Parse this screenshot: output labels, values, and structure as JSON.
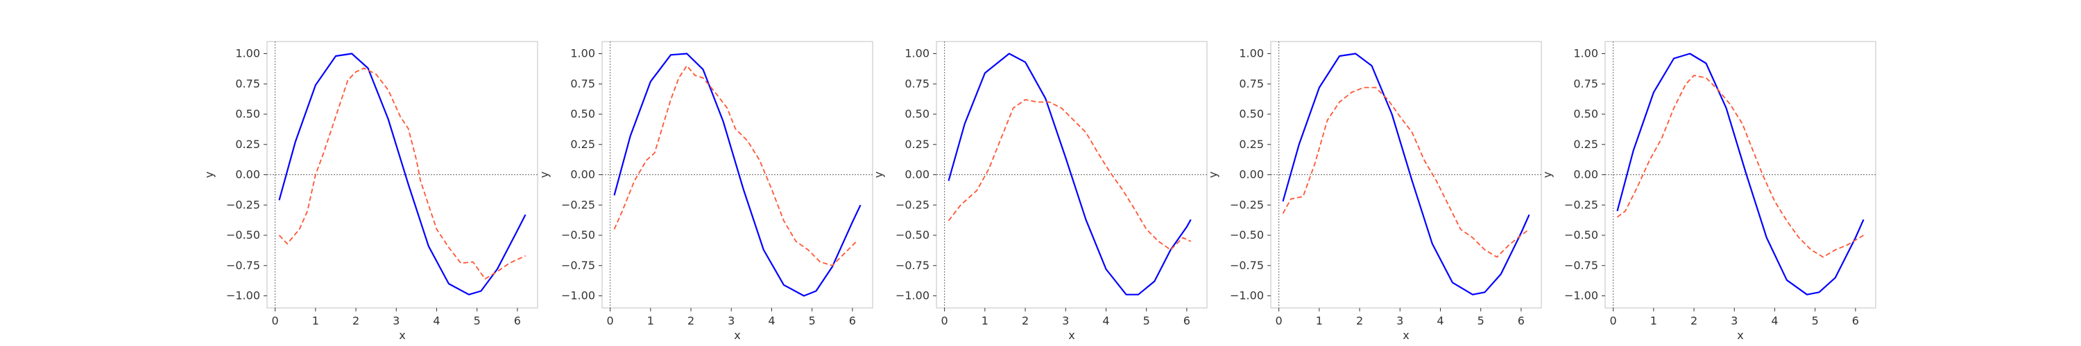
{
  "chart_data": [
    {
      "type": "line",
      "xlabel": "x",
      "ylabel": "y",
      "xlim": [
        -0.2,
        6.5
      ],
      "ylim": [
        -1.1,
        1.1
      ],
      "xticks": [
        0,
        1,
        2,
        3,
        4,
        5,
        6
      ],
      "yticks": [
        -1.0,
        -0.75,
        -0.5,
        -0.25,
        0.0,
        0.25,
        0.5,
        0.75,
        1.0
      ],
      "ytick_labels": [
        "−1.00",
        "−0.75",
        "−0.50",
        "−0.25",
        "0.00",
        "0.25",
        "0.50",
        "0.75",
        "1.00"
      ],
      "grid": false,
      "reference_lines": {
        "y": 0.0,
        "x": 0.0
      },
      "series": [
        {
          "style": "solid",
          "color": "#0000ff",
          "x": [
            0.1,
            0.5,
            1.0,
            1.5,
            1.9,
            2.3,
            2.8,
            3.3,
            3.8,
            4.3,
            4.8,
            5.1,
            5.5,
            6.0,
            6.2
          ],
          "y": [
            -0.21,
            0.27,
            0.74,
            0.98,
            1.0,
            0.88,
            0.46,
            -0.08,
            -0.59,
            -0.9,
            -0.99,
            -0.96,
            -0.78,
            -0.46,
            -0.33
          ]
        },
        {
          "style": "dashed",
          "color": "#ff5533",
          "x": [
            0.1,
            0.3,
            0.6,
            0.8,
            1.0,
            1.2,
            1.5,
            1.8,
            2.0,
            2.2,
            2.5,
            2.8,
            3.1,
            3.3,
            3.5,
            3.6,
            3.8,
            4.0,
            4.3,
            4.6,
            4.9,
            5.2,
            5.5,
            5.8,
            6.2
          ],
          "y": [
            -0.5,
            -0.57,
            -0.45,
            -0.3,
            0.0,
            0.18,
            0.48,
            0.78,
            0.85,
            0.88,
            0.83,
            0.7,
            0.48,
            0.38,
            0.12,
            -0.05,
            -0.25,
            -0.45,
            -0.6,
            -0.73,
            -0.72,
            -0.86,
            -0.8,
            -0.73,
            -0.67
          ]
        }
      ]
    },
    {
      "type": "line",
      "xlabel": "x",
      "ylabel": "y",
      "xlim": [
        -0.2,
        6.5
      ],
      "ylim": [
        -1.1,
        1.1
      ],
      "xticks": [
        0,
        1,
        2,
        3,
        4,
        5,
        6
      ],
      "yticks": [
        -1.0,
        -0.75,
        -0.5,
        -0.25,
        0.0,
        0.25,
        0.5,
        0.75,
        1.0
      ],
      "ytick_labels": [
        "−1.00",
        "−0.75",
        "−0.50",
        "−0.25",
        "0.00",
        "0.25",
        "0.50",
        "0.75",
        "1.00"
      ],
      "grid": false,
      "reference_lines": {
        "y": 0.0,
        "x": 0.0
      },
      "series": [
        {
          "style": "solid",
          "color": "#0000ff",
          "x": [
            0.1,
            0.5,
            1.0,
            1.5,
            1.9,
            2.3,
            2.8,
            3.3,
            3.8,
            4.3,
            4.8,
            5.1,
            5.5,
            6.0,
            6.2
          ],
          "y": [
            -0.17,
            0.32,
            0.77,
            0.99,
            1.0,
            0.87,
            0.44,
            -0.12,
            -0.62,
            -0.91,
            -1.0,
            -0.96,
            -0.76,
            -0.39,
            -0.25
          ]
        },
        {
          "style": "dashed",
          "color": "#ff5533",
          "x": [
            0.1,
            0.3,
            0.6,
            0.9,
            1.1,
            1.3,
            1.5,
            1.7,
            1.9,
            2.1,
            2.3,
            2.6,
            2.9,
            3.1,
            3.4,
            3.7,
            4.0,
            4.3,
            4.6,
            4.9,
            5.2,
            5.5,
            5.8,
            6.1
          ],
          "y": [
            -0.45,
            -0.3,
            -0.05,
            0.12,
            0.18,
            0.4,
            0.62,
            0.8,
            0.9,
            0.82,
            0.8,
            0.68,
            0.55,
            0.38,
            0.28,
            0.12,
            -0.12,
            -0.38,
            -0.55,
            -0.62,
            -0.72,
            -0.75,
            -0.65,
            -0.55
          ]
        }
      ]
    },
    {
      "type": "line",
      "xlabel": "x",
      "ylabel": "y",
      "xlim": [
        -0.2,
        6.5
      ],
      "ylim": [
        -1.1,
        1.1
      ],
      "xticks": [
        0,
        1,
        2,
        3,
        4,
        5,
        6
      ],
      "yticks": [
        -1.0,
        -0.75,
        -0.5,
        -0.25,
        0.0,
        0.25,
        0.5,
        0.75,
        1.0
      ],
      "ytick_labels": [
        "−1.00",
        "−0.75",
        "−0.50",
        "−0.25",
        "0.00",
        "0.25",
        "0.50",
        "0.75",
        "1.00"
      ],
      "grid": false,
      "reference_lines": {
        "y": 0.0,
        "x": 0.0
      },
      "series": [
        {
          "style": "solid",
          "color": "#0000ff",
          "x": [
            0.1,
            0.5,
            1.0,
            1.6,
            2.0,
            2.5,
            3.0,
            3.5,
            4.0,
            4.5,
            4.8,
            5.2,
            5.6,
            6.0,
            6.1
          ],
          "y": [
            -0.05,
            0.42,
            0.84,
            1.0,
            0.93,
            0.63,
            0.14,
            -0.37,
            -0.78,
            -0.99,
            -0.99,
            -0.88,
            -0.62,
            -0.43,
            -0.37
          ]
        },
        {
          "style": "dashed",
          "color": "#ff5533",
          "x": [
            0.1,
            0.4,
            0.8,
            1.1,
            1.4,
            1.7,
            2.0,
            2.3,
            2.6,
            2.9,
            3.2,
            3.5,
            3.8,
            4.1,
            4.4,
            4.7,
            5.0,
            5.3,
            5.6,
            5.9,
            6.1
          ],
          "y": [
            -0.38,
            -0.25,
            -0.13,
            0.05,
            0.3,
            0.55,
            0.62,
            0.6,
            0.6,
            0.55,
            0.45,
            0.35,
            0.18,
            0.02,
            -0.12,
            -0.28,
            -0.45,
            -0.55,
            -0.62,
            -0.52,
            -0.55
          ]
        }
      ]
    },
    {
      "type": "line",
      "xlabel": "x",
      "ylabel": "y",
      "xlim": [
        -0.2,
        6.5
      ],
      "ylim": [
        -1.1,
        1.1
      ],
      "xticks": [
        0,
        1,
        2,
        3,
        4,
        5,
        6
      ],
      "yticks": [
        -1.0,
        -0.75,
        -0.5,
        -0.25,
        0.0,
        0.25,
        0.5,
        0.75,
        1.0
      ],
      "ytick_labels": [
        "−1.00",
        "−0.75",
        "−0.50",
        "−0.25",
        "0.00",
        "0.25",
        "0.50",
        "0.75",
        "1.00"
      ],
      "grid": false,
      "reference_lines": {
        "y": 0.0,
        "x": 0.0
      },
      "series": [
        {
          "style": "solid",
          "color": "#0000ff",
          "x": [
            0.1,
            0.5,
            1.0,
            1.5,
            1.9,
            2.3,
            2.8,
            3.3,
            3.8,
            4.3,
            4.8,
            5.1,
            5.5,
            6.0,
            6.2
          ],
          "y": [
            -0.22,
            0.25,
            0.72,
            0.98,
            1.0,
            0.9,
            0.5,
            -0.05,
            -0.57,
            -0.89,
            -0.99,
            -0.97,
            -0.82,
            -0.48,
            -0.33
          ]
        },
        {
          "style": "dashed",
          "color": "#ff5533",
          "x": [
            0.1,
            0.3,
            0.6,
            0.9,
            1.2,
            1.5,
            1.8,
            2.1,
            2.4,
            2.7,
            3.0,
            3.3,
            3.6,
            3.9,
            4.2,
            4.5,
            4.8,
            5.1,
            5.4,
            5.7,
            6.0,
            6.2
          ],
          "y": [
            -0.32,
            -0.2,
            -0.18,
            0.1,
            0.45,
            0.6,
            0.68,
            0.72,
            0.72,
            0.62,
            0.48,
            0.35,
            0.12,
            -0.05,
            -0.25,
            -0.45,
            -0.52,
            -0.62,
            -0.68,
            -0.58,
            -0.5,
            -0.45
          ]
        }
      ]
    },
    {
      "type": "line",
      "xlabel": "x",
      "ylabel": "y",
      "xlim": [
        -0.2,
        6.5
      ],
      "ylim": [
        -1.1,
        1.1
      ],
      "xticks": [
        0,
        1,
        2,
        3,
        4,
        5,
        6
      ],
      "yticks": [
        -1.0,
        -0.75,
        -0.5,
        -0.25,
        0.0,
        0.25,
        0.5,
        0.75,
        1.0
      ],
      "ytick_labels": [
        "−1.00",
        "−0.75",
        "−0.50",
        "−0.25",
        "0.00",
        "0.25",
        "0.50",
        "0.75",
        "1.00"
      ],
      "grid": false,
      "reference_lines": {
        "y": 0.0,
        "x": 0.0
      },
      "series": [
        {
          "style": "solid",
          "color": "#0000ff",
          "x": [
            0.1,
            0.5,
            1.0,
            1.5,
            1.9,
            2.3,
            2.8,
            3.3,
            3.8,
            4.3,
            4.8,
            5.1,
            5.5,
            6.0,
            6.2
          ],
          "y": [
            -0.3,
            0.2,
            0.68,
            0.96,
            1.0,
            0.92,
            0.55,
            0.0,
            -0.52,
            -0.87,
            -0.99,
            -0.97,
            -0.85,
            -0.52,
            -0.37
          ]
        },
        {
          "style": "dashed",
          "color": "#ff5533",
          "x": [
            0.1,
            0.3,
            0.6,
            0.9,
            1.2,
            1.5,
            1.8,
            2.0,
            2.3,
            2.6,
            2.9,
            3.2,
            3.4,
            3.7,
            4.0,
            4.3,
            4.6,
            4.9,
            5.2,
            5.5,
            5.8,
            6.2
          ],
          "y": [
            -0.35,
            -0.3,
            -0.1,
            0.12,
            0.3,
            0.55,
            0.75,
            0.82,
            0.8,
            0.7,
            0.58,
            0.42,
            0.25,
            0.0,
            -0.22,
            -0.38,
            -0.52,
            -0.62,
            -0.68,
            -0.62,
            -0.58,
            -0.5
          ]
        }
      ]
    }
  ]
}
